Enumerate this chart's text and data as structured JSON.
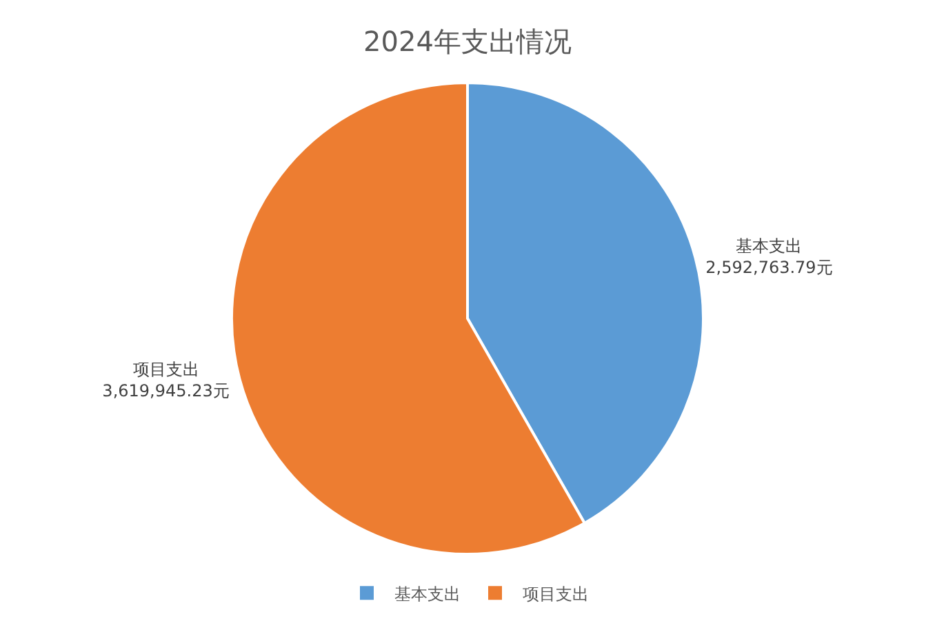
{
  "chart_data": {
    "type": "pie",
    "title": "2024年支出情况",
    "categories": [
      "基本支出",
      "项目支出"
    ],
    "values": [
      2592763.79,
      3619945.23
    ],
    "colors": [
      "#5b9bd5",
      "#ed7d31"
    ],
    "value_labels": [
      "2,592,763.79元",
      "3,619,945.23元"
    ],
    "legend": "bottom"
  }
}
